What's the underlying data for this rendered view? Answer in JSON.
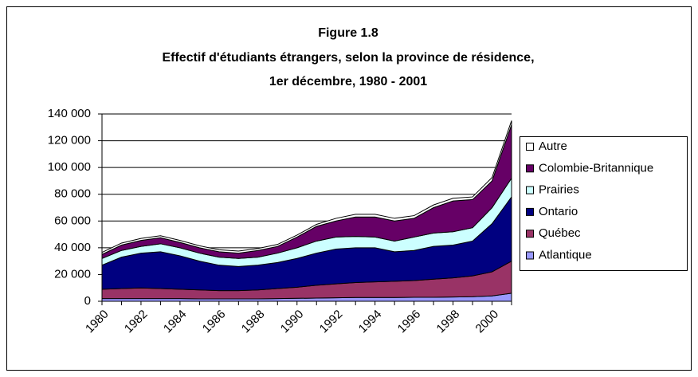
{
  "chart_data": {
    "type": "stacked-area",
    "title": [
      "Figure 1.8",
      "Effectif d'étudiants étrangers, selon la province de résidence,",
      "1er décembre, 1980 - 2001"
    ],
    "categories": [
      "1980",
      null,
      "1982",
      null,
      "1984",
      null,
      "1986",
      null,
      "1988",
      null,
      "1990",
      null,
      "1992",
      null,
      "1994",
      null,
      "1996",
      null,
      "1998",
      null,
      "2000",
      null
    ],
    "series": [
      {
        "name": "Atlantique",
        "color": "#9999ff",
        "values": [
          2000,
          2000,
          2000,
          2000,
          2000,
          1800,
          1800,
          1800,
          1800,
          2000,
          2200,
          2400,
          2600,
          2800,
          2800,
          2800,
          3000,
          3000,
          3200,
          3400,
          4000,
          6000
        ]
      },
      {
        "name": "Québec",
        "color": "#993366",
        "values": [
          7000,
          7500,
          8000,
          7500,
          7000,
          6700,
          6200,
          6200,
          6700,
          7500,
          8300,
          9600,
          10400,
          11200,
          11700,
          12200,
          12500,
          13500,
          14300,
          15600,
          18000,
          24000
        ]
      },
      {
        "name": "Ontario",
        "color": "#000080",
        "values": [
          18000,
          23500,
          26000,
          27500,
          25000,
          21500,
          19000,
          18000,
          18500,
          19500,
          21500,
          24000,
          26000,
          26000,
          25500,
          22000,
          22500,
          24500,
          24500,
          26000,
          36000,
          48000
        ]
      },
      {
        "name": "Prairies",
        "color": "#ccffff",
        "values": [
          5000,
          5000,
          5000,
          6000,
          6000,
          6000,
          6000,
          6000,
          6000,
          7000,
          8000,
          9000,
          9000,
          8500,
          8000,
          8000,
          10000,
          10000,
          10000,
          10000,
          12000,
          14000
        ]
      },
      {
        "name": "Colombie-Britannique",
        "color": "#660066",
        "values": [
          3000,
          4000,
          4500,
          4500,
          4000,
          4000,
          4000,
          4000,
          5000,
          5000,
          8000,
          11000,
          12000,
          14500,
          15000,
          15000,
          14000,
          19000,
          23000,
          21000,
          20000,
          40000
        ]
      },
      {
        "name": "Autre",
        "color": "#ffffff",
        "values": [
          1500,
          1500,
          1500,
          1500,
          1500,
          1500,
          1500,
          1500,
          1500,
          1500,
          1500,
          1500,
          2000,
          2000,
          2000,
          2000,
          2000,
          2000,
          2000,
          2000,
          2500,
          3000
        ]
      }
    ],
    "ylim": [
      0,
      140000
    ],
    "yticks": [
      0,
      {
        "value": 20000,
        "label": "20 000"
      },
      {
        "value": 40000,
        "label": "40 000"
      },
      {
        "value": 60000,
        "label": "60 000"
      },
      {
        "value": 80000,
        "label": "80 000"
      },
      {
        "value": 100000,
        "label": "100 000"
      },
      {
        "value": 120000,
        "label": "120 000"
      },
      {
        "value": 140000,
        "label": "140 000"
      }
    ],
    "grid": true,
    "legend": "right"
  }
}
